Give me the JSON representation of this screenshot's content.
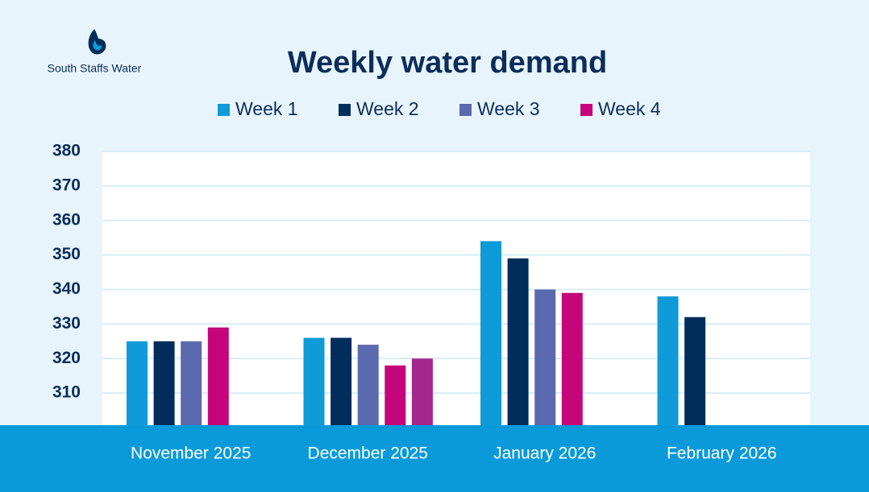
{
  "logo_text": "South Staffs Water",
  "chart_data": {
    "type": "bar",
    "title": "Weekly water demand",
    "categories": [
      "November 2025",
      "December 2025",
      "January 2026",
      "February 2026"
    ],
    "series": [
      {
        "name": "Week 1",
        "color": "#0f9ad8",
        "values": [
          325,
          326,
          354,
          338
        ]
      },
      {
        "name": "Week 2",
        "color": "#002d5c",
        "values": [
          325,
          326,
          349,
          332
        ]
      },
      {
        "name": "Week 3",
        "color": "#5b6aae",
        "values": [
          325,
          324,
          340,
          null
        ]
      },
      {
        "name": "Week 4",
        "color": "#c4067a",
        "values": [
          329,
          318,
          339,
          null
        ]
      },
      {
        "color": "#a3278f",
        "values": [
          null,
          320,
          null,
          null
        ]
      }
    ],
    "ylim": [
      300,
      380
    ],
    "yticks": [
      310,
      320,
      330,
      340,
      350,
      360,
      370,
      380
    ],
    "grid": true
  }
}
